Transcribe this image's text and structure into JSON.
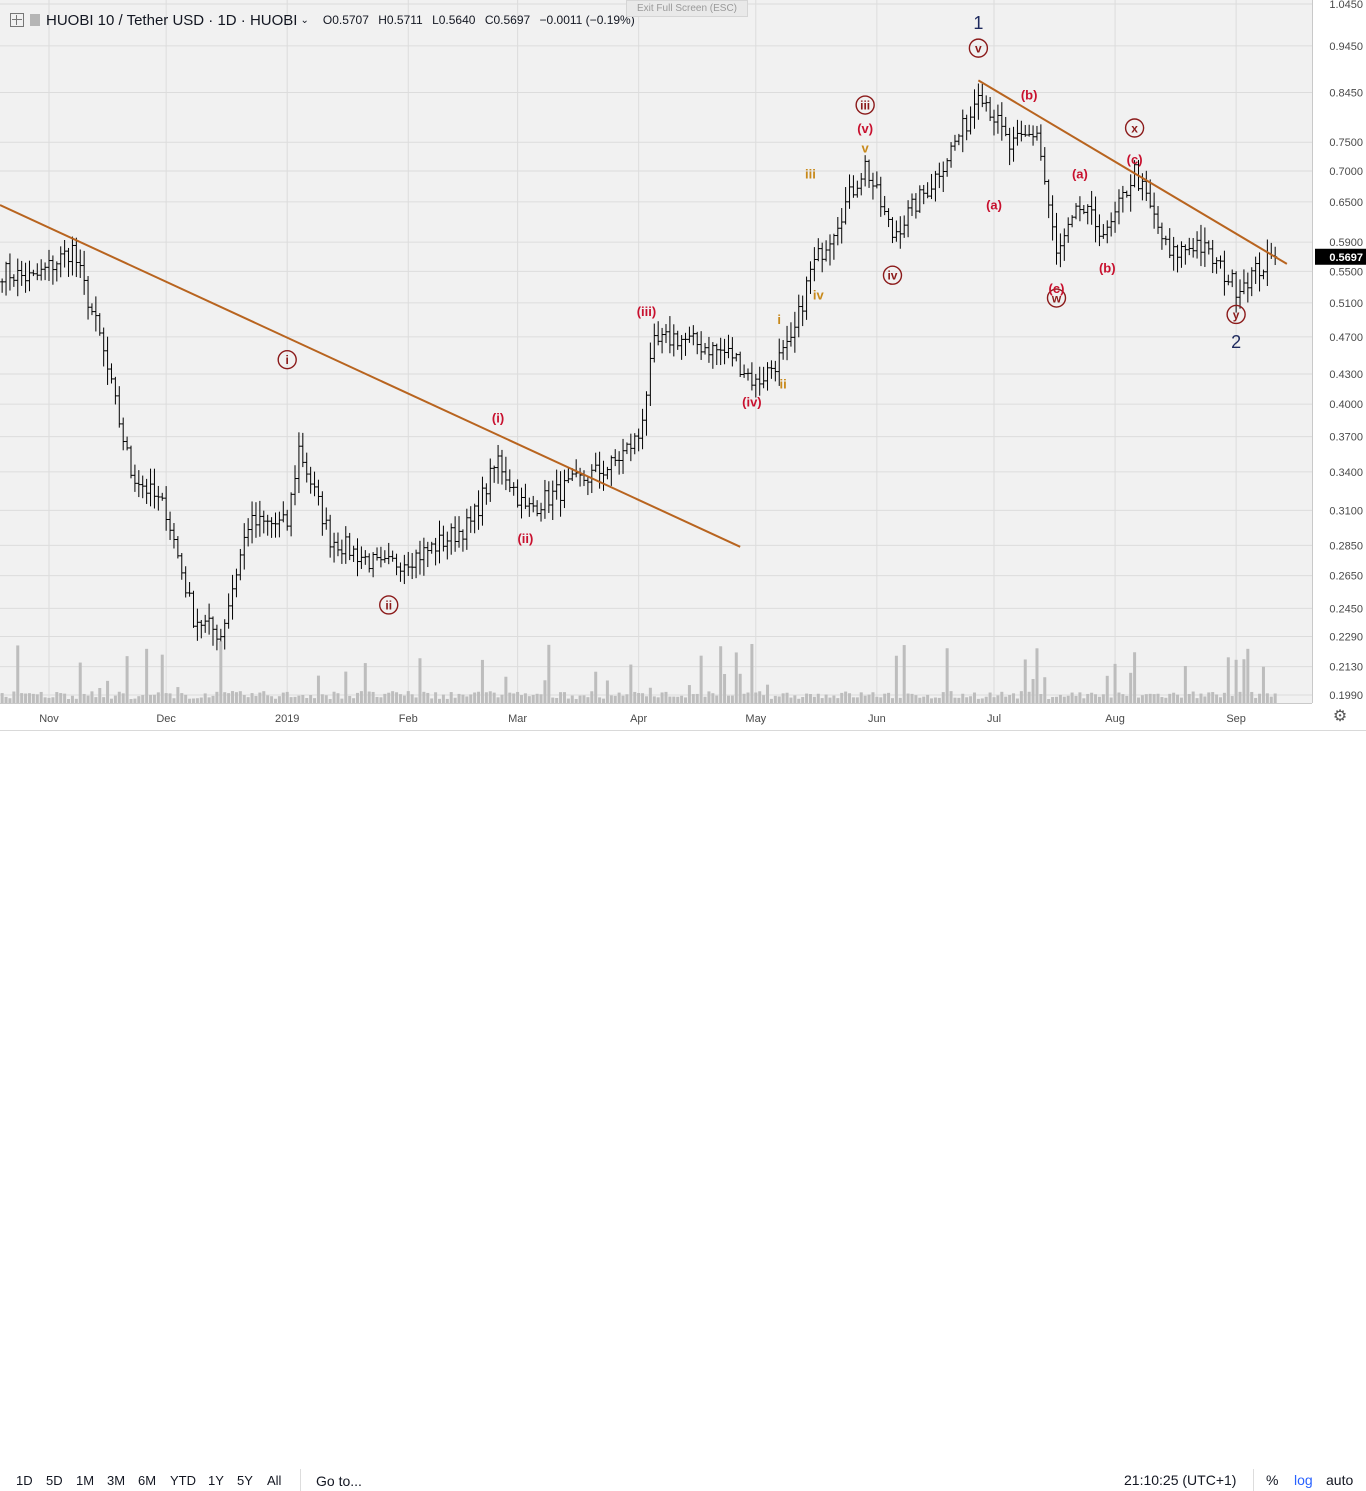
{
  "header": {
    "symbol": "HUOBI 10 / Tether USD · 1D · HUOBI",
    "open": "O0.5707",
    "high": "H0.5711",
    "low": "L0.5640",
    "close": "C0.5697",
    "change": "−0.0011 (−0.19%)",
    "exit_fullscreen": "Exit Full Screen (ESC)"
  },
  "price_axis": {
    "ticks": [
      "1.0450",
      "0.9450",
      "0.8450",
      "0.7500",
      "0.7000",
      "0.6500",
      "0.5900",
      "0.5500",
      "0.5100",
      "0.4700",
      "0.4300",
      "0.4000",
      "0.3700",
      "0.3400",
      "0.3100",
      "0.2850",
      "0.2650",
      "0.2450",
      "0.2290",
      "0.2130",
      "0.1990"
    ],
    "current_price": "0.5697"
  },
  "time_axis": {
    "labels": [
      "Nov",
      "Dec",
      "2019",
      "Feb",
      "Mar",
      "Apr",
      "May",
      "Jun",
      "Jul",
      "Aug",
      "Sep"
    ]
  },
  "bottom_bar": {
    "timeframes": [
      "1D",
      "5D",
      "1M",
      "3M",
      "6M",
      "YTD",
      "1Y",
      "5Y",
      "All"
    ],
    "goto": "Go to...",
    "clock": "21:10:25 (UTC+1)",
    "percent": "%",
    "log": "log",
    "auto": "auto"
  },
  "colors": {
    "candle": "#000000",
    "trendline": "#b8641f",
    "wave_major": "#8b1a1a",
    "wave_minor": "#c8102e",
    "wave_sub": "#c8891a",
    "wave_top": "#1e2a5e",
    "volume": "#bdbdbd"
  },
  "chart_data": {
    "type": "ohlc",
    "scale": "log",
    "ylim": [
      0.199,
      1.045
    ],
    "x_labels": [
      "Nov",
      "Dec",
      "2019",
      "Feb",
      "Mar",
      "Apr",
      "May",
      "Jun",
      "Jul",
      "Aug",
      "Sep"
    ],
    "price_path_keypoints": [
      {
        "date": "Oct 20",
        "close": 0.55
      },
      {
        "date": "Oct 28",
        "close": 0.54
      },
      {
        "date": "Nov 7",
        "close": 0.58
      },
      {
        "date": "Nov 14",
        "close": 0.47
      },
      {
        "date": "Nov 22",
        "close": 0.34
      },
      {
        "date": "Dec 1",
        "close": 0.31
      },
      {
        "date": "Dec 8",
        "close": 0.24
      },
      {
        "date": "Dec 15",
        "close": 0.23
      },
      {
        "date": "Dec 22",
        "close": 0.3
      },
      {
        "date": "Jan 1",
        "close": 0.3
      },
      {
        "date": "Jan 4",
        "close": 0.36
      },
      {
        "date": "Jan 12",
        "close": 0.29
      },
      {
        "date": "Jan 25",
        "close": 0.27
      },
      {
        "date": "Feb 5",
        "close": 0.28
      },
      {
        "date": "Feb 17",
        "close": 0.3
      },
      {
        "date": "Feb 24",
        "close": 0.35
      },
      {
        "date": "Mar 3",
        "close": 0.31
      },
      {
        "date": "Mar 15",
        "close": 0.33
      },
      {
        "date": "Mar 25",
        "close": 0.345
      },
      {
        "date": "Apr 1",
        "close": 0.37
      },
      {
        "date": "Apr 5",
        "close": 0.46
      },
      {
        "date": "Apr 10",
        "close": 0.47
      },
      {
        "date": "Apr 25",
        "close": 0.45
      },
      {
        "date": "May 1",
        "close": 0.42
      },
      {
        "date": "May 10",
        "close": 0.46
      },
      {
        "date": "May 15",
        "close": 0.55
      },
      {
        "date": "May 20",
        "close": 0.6
      },
      {
        "date": "May 29",
        "close": 0.71
      },
      {
        "date": "Jun 5",
        "close": 0.6
      },
      {
        "date": "Jun 15",
        "close": 0.68
      },
      {
        "date": "Jun 25",
        "close": 0.8
      },
      {
        "date": "Jun 27",
        "close": 0.86
      },
      {
        "date": "Jul 5",
        "close": 0.74
      },
      {
        "date": "Jul 12",
        "close": 0.77
      },
      {
        "date": "Jul 17",
        "close": 0.57
      },
      {
        "date": "Jul 23",
        "close": 0.64
      },
      {
        "date": "Jul 30",
        "close": 0.6
      },
      {
        "date": "Aug 6",
        "close": 0.7
      },
      {
        "date": "Aug 15",
        "close": 0.57
      },
      {
        "date": "Aug 22",
        "close": 0.59
      },
      {
        "date": "Sep 1",
        "close": 0.53
      },
      {
        "date": "Sep 11",
        "close": 0.5697
      }
    ],
    "wave_labels": [
      {
        "text": "1",
        "kind": "top",
        "date": "Jun 27",
        "price": 1.0
      },
      {
        "text": "2",
        "kind": "top",
        "date": "Sep 1",
        "price": 0.465
      },
      {
        "text": "v",
        "kind": "circled",
        "date": "Jun 27",
        "price": 0.94
      },
      {
        "text": "iii",
        "kind": "circled",
        "date": "May 29",
        "price": 0.82
      },
      {
        "text": "iv",
        "kind": "circled",
        "date": "Jun 5",
        "price": 0.545
      },
      {
        "text": "i",
        "kind": "circled",
        "date": "Jan 1",
        "price": 0.445
      },
      {
        "text": "ii",
        "kind": "circled",
        "date": "Jan 27",
        "price": 0.247
      },
      {
        "text": "w",
        "kind": "circled",
        "date": "Jul 17",
        "price": 0.516
      },
      {
        "text": "x",
        "kind": "circled",
        "date": "Aug 6",
        "price": 0.776
      },
      {
        "text": "y",
        "kind": "circled",
        "date": "Sep 1",
        "price": 0.496
      },
      {
        "text": "(i)",
        "kind": "minor",
        "date": "Feb 24",
        "price": 0.387
      },
      {
        "text": "(ii)",
        "kind": "minor",
        "date": "Mar 3",
        "price": 0.29
      },
      {
        "text": "(iii)",
        "kind": "minor",
        "date": "Apr 3",
        "price": 0.5
      },
      {
        "text": "(iv)",
        "kind": "minor",
        "date": "Apr 30",
        "price": 0.402
      },
      {
        "text": "(v)",
        "kind": "minor",
        "date": "May 29",
        "price": 0.775
      },
      {
        "text": "(a)",
        "kind": "minor",
        "date": "Jul 1",
        "price": 0.645
      },
      {
        "text": "(b)",
        "kind": "minor",
        "date": "Jul 10",
        "price": 0.84
      },
      {
        "text": "(c)",
        "kind": "minor",
        "date": "Jul 17",
        "price": 0.528
      },
      {
        "text": "(a)",
        "kind": "minor",
        "date": "Jul 23",
        "price": 0.695
      },
      {
        "text": "(b)",
        "kind": "minor",
        "date": "Jul 30",
        "price": 0.555
      },
      {
        "text": "(c)",
        "kind": "minor",
        "date": "Aug 6",
        "price": 0.72
      },
      {
        "text": "v",
        "kind": "sub",
        "date": "May 29",
        "price": 0.74
      },
      {
        "text": "iii",
        "kind": "sub",
        "date": "May 15",
        "price": 0.695
      },
      {
        "text": "iv",
        "kind": "sub",
        "date": "May 17",
        "price": 0.52
      },
      {
        "text": "i",
        "kind": "sub",
        "date": "May 7",
        "price": 0.49
      },
      {
        "text": "ii",
        "kind": "sub",
        "date": "May 8",
        "price": 0.42
      }
    ],
    "trendlines": [
      {
        "from": {
          "date": "Oct 20",
          "price": 0.645
        },
        "to": {
          "date": "Apr 27",
          "price": 0.284
        }
      },
      {
        "from": {
          "date": "Jun 27",
          "price": 0.87
        },
        "to": {
          "date": "Sep 14",
          "price": 0.56
        }
      }
    ]
  }
}
